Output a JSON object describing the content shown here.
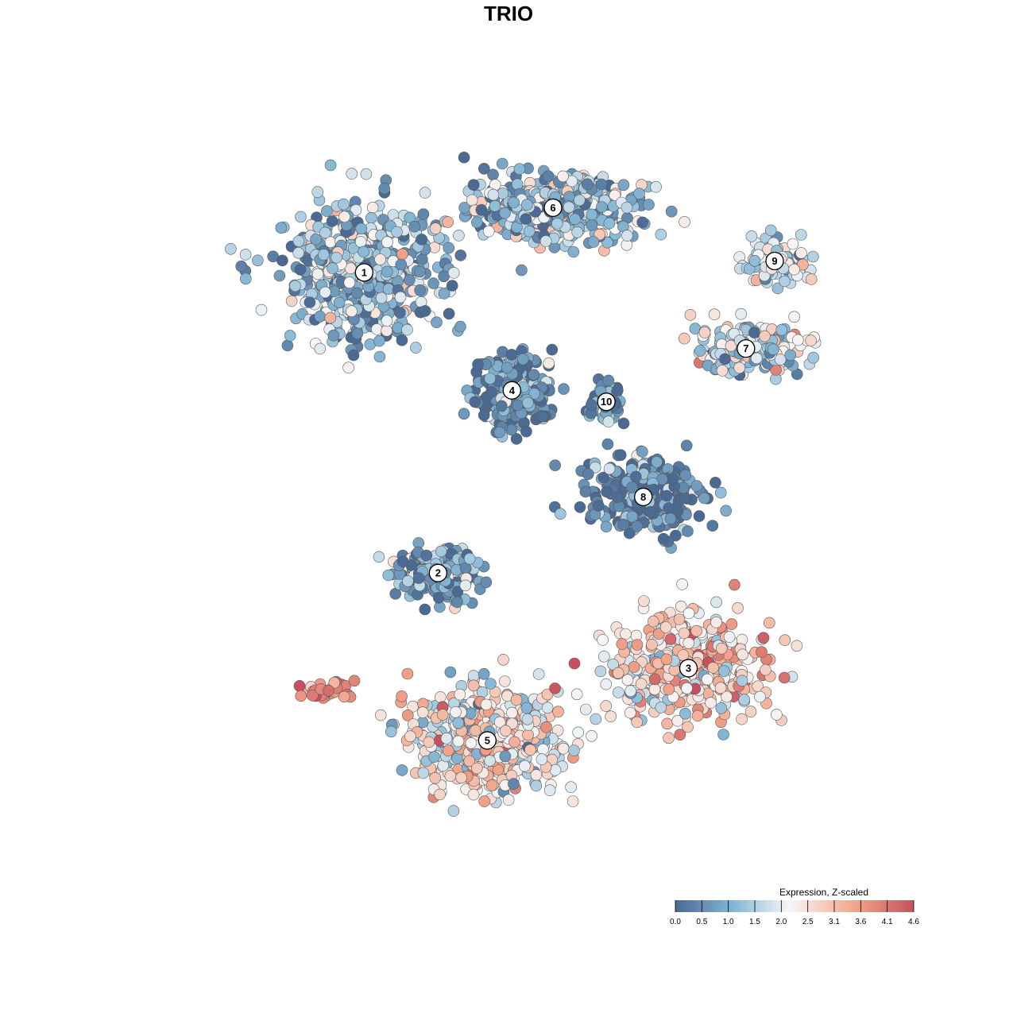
{
  "chart_data": {
    "type": "scatter",
    "title": "TRIO",
    "xlabel": "",
    "ylabel": "",
    "grid": false,
    "legend": {
      "title": "Expression, Z-scaled",
      "placement": "bottom-right",
      "ticks": [
        "0.0",
        "0.5",
        "1.0",
        "1.5",
        "2.0",
        "2.5",
        "3.1",
        "3.6",
        "4.1",
        "4.6"
      ],
      "colorscale": [
        "#4a6a94",
        "#86b8d6",
        "#f7f7f7",
        "#f3a58a",
        "#c8505e"
      ]
    },
    "cluster_labels": [
      "1",
      "2",
      "3",
      "4",
      "5",
      "6",
      "7",
      "8",
      "9",
      "10"
    ],
    "clusters": [
      {
        "label": "1",
        "x": -0.4,
        "y": 0.61,
        "n": 620,
        "mean_expression": 1.2
      },
      {
        "label": "2",
        "x": -0.22,
        "y": -0.18,
        "n": 190,
        "mean_expression": 0.9
      },
      {
        "label": "3",
        "x": 0.39,
        "y": -0.43,
        "n": 430,
        "mean_expression": 2.7
      },
      {
        "label": "4",
        "x": -0.04,
        "y": 0.3,
        "n": 330,
        "mean_expression": 0.5
      },
      {
        "label": "5",
        "x": -0.1,
        "y": -0.62,
        "n": 520,
        "mean_expression": 2.4
      },
      {
        "label": "6",
        "x": 0.06,
        "y": 0.78,
        "n": 470,
        "mean_expression": 1.3
      },
      {
        "label": "7",
        "x": 0.53,
        "y": 0.41,
        "n": 210,
        "mean_expression": 1.6
      },
      {
        "label": "8",
        "x": 0.28,
        "y": 0.02,
        "n": 300,
        "mean_expression": 0.4
      },
      {
        "label": "9",
        "x": 0.6,
        "y": 0.64,
        "n": 110,
        "mean_expression": 1.9
      },
      {
        "label": "10",
        "x": 0.19,
        "y": 0.27,
        "n": 80,
        "mean_expression": 0.5
      }
    ],
    "isolated_group": {
      "x": -0.49,
      "y": -0.49,
      "n": 35,
      "mean_expression": 4.0
    },
    "xlim": [
      -0.9,
      0.9
    ],
    "ylim": [
      -0.95,
      0.95
    ]
  }
}
